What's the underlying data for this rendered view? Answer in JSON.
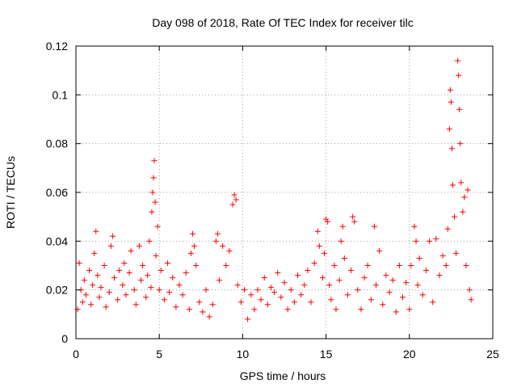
{
  "chart_data": {
    "type": "scatter",
    "title": "Day 098 of 2018, Rate Of TEC Index for receiver tilc",
    "xlabel": "GPS time / hours",
    "ylabel": "ROTI / TECUs",
    "xlim": [
      0,
      25
    ],
    "ylim": [
      0,
      0.12
    ],
    "x_ticks": [
      0,
      5,
      10,
      15,
      20,
      25
    ],
    "x_tick_labels": [
      "0",
      "5",
      "10",
      "15",
      "20",
      "25"
    ],
    "y_ticks": [
      0,
      0.02,
      0.04,
      0.06,
      0.08,
      0.1,
      0.12
    ],
    "y_tick_labels": [
      "0",
      "0.02",
      "0.04",
      "0.06",
      "0.08",
      "0.1",
      "0.12"
    ],
    "grid": true,
    "marker": "+",
    "color": "#ff0000",
    "series": [
      {
        "name": "ROTI",
        "points": [
          [
            0.1,
            0.012
          ],
          [
            0.2,
            0.031
          ],
          [
            0.3,
            0.02
          ],
          [
            0.4,
            0.015
          ],
          [
            0.5,
            0.024
          ],
          [
            0.6,
            0.018
          ],
          [
            0.8,
            0.028
          ],
          [
            0.9,
            0.014
          ],
          [
            1.0,
            0.022
          ],
          [
            1.1,
            0.035
          ],
          [
            1.2,
            0.044
          ],
          [
            1.3,
            0.026
          ],
          [
            1.4,
            0.017
          ],
          [
            1.5,
            0.021
          ],
          [
            1.7,
            0.03
          ],
          [
            1.8,
            0.013
          ],
          [
            2.0,
            0.019
          ],
          [
            2.1,
            0.038
          ],
          [
            2.2,
            0.042
          ],
          [
            2.3,
            0.025
          ],
          [
            2.5,
            0.016
          ],
          [
            2.6,
            0.028
          ],
          [
            2.8,
            0.022
          ],
          [
            2.9,
            0.031
          ],
          [
            3.0,
            0.018
          ],
          [
            3.2,
            0.027
          ],
          [
            3.3,
            0.036
          ],
          [
            3.5,
            0.02
          ],
          [
            3.6,
            0.014
          ],
          [
            3.8,
            0.038
          ],
          [
            3.9,
            0.024
          ],
          [
            4.0,
            0.03
          ],
          [
            4.2,
            0.017
          ],
          [
            4.3,
            0.026
          ],
          [
            4.4,
            0.04
          ],
          [
            4.5,
            0.021
          ],
          [
            4.55,
            0.052
          ],
          [
            4.6,
            0.06
          ],
          [
            4.65,
            0.066
          ],
          [
            4.7,
            0.073
          ],
          [
            4.75,
            0.056
          ],
          [
            4.8,
            0.034
          ],
          [
            4.9,
            0.046
          ],
          [
            5.0,
            0.02
          ],
          [
            5.1,
            0.028
          ],
          [
            5.3,
            0.016
          ],
          [
            5.5,
            0.031
          ],
          [
            5.6,
            0.019
          ],
          [
            5.8,
            0.025
          ],
          [
            6.0,
            0.013
          ],
          [
            6.2,
            0.022
          ],
          [
            6.4,
            0.018
          ],
          [
            6.6,
            0.027
          ],
          [
            6.8,
            0.012
          ],
          [
            6.9,
            0.035
          ],
          [
            7.0,
            0.043
          ],
          [
            7.1,
            0.038
          ],
          [
            7.2,
            0.03
          ],
          [
            7.4,
            0.015
          ],
          [
            7.6,
            0.011
          ],
          [
            7.8,
            0.02
          ],
          [
            8.0,
            0.009
          ],
          [
            8.2,
            0.014
          ],
          [
            8.4,
            0.04
          ],
          [
            8.5,
            0.043
          ],
          [
            8.6,
            0.024
          ],
          [
            8.8,
            0.038
          ],
          [
            9.0,
            0.03
          ],
          [
            9.2,
            0.036
          ],
          [
            9.4,
            0.055
          ],
          [
            9.5,
            0.059
          ],
          [
            9.6,
            0.057
          ],
          [
            9.7,
            0.022
          ],
          [
            9.9,
            0.015
          ],
          [
            10.1,
            0.02
          ],
          [
            10.3,
            0.008
          ],
          [
            10.5,
            0.018
          ],
          [
            10.7,
            0.012
          ],
          [
            10.9,
            0.02
          ],
          [
            11.1,
            0.016
          ],
          [
            11.3,
            0.025
          ],
          [
            11.5,
            0.014
          ],
          [
            11.7,
            0.021
          ],
          [
            11.9,
            0.019
          ],
          [
            12.1,
            0.027
          ],
          [
            12.3,
            0.017
          ],
          [
            12.5,
            0.023
          ],
          [
            12.7,
            0.012
          ],
          [
            12.9,
            0.02
          ],
          [
            13.1,
            0.015
          ],
          [
            13.3,
            0.026
          ],
          [
            13.5,
            0.018
          ],
          [
            13.7,
            0.022
          ],
          [
            13.9,
            0.028
          ],
          [
            14.1,
            0.015
          ],
          [
            14.3,
            0.031
          ],
          [
            14.5,
            0.044
          ],
          [
            14.6,
            0.038
          ],
          [
            14.8,
            0.025
          ],
          [
            14.9,
            0.035
          ],
          [
            15.0,
            0.049
          ],
          [
            15.1,
            0.048
          ],
          [
            15.2,
            0.022
          ],
          [
            15.3,
            0.016
          ],
          [
            15.5,
            0.03
          ],
          [
            15.6,
            0.012
          ],
          [
            15.8,
            0.024
          ],
          [
            15.9,
            0.04
          ],
          [
            16.0,
            0.046
          ],
          [
            16.1,
            0.033
          ],
          [
            16.3,
            0.018
          ],
          [
            16.5,
            0.028
          ],
          [
            16.6,
            0.05
          ],
          [
            16.7,
            0.048
          ],
          [
            16.9,
            0.02
          ],
          [
            17.1,
            0.012
          ],
          [
            17.3,
            0.025
          ],
          [
            17.5,
            0.03
          ],
          [
            17.7,
            0.016
          ],
          [
            17.9,
            0.046
          ],
          [
            18.0,
            0.022
          ],
          [
            18.2,
            0.036
          ],
          [
            18.4,
            0.014
          ],
          [
            18.6,
            0.026
          ],
          [
            18.8,
            0.019
          ],
          [
            19.0,
            0.024
          ],
          [
            19.2,
            0.011
          ],
          [
            19.4,
            0.03
          ],
          [
            19.6,
            0.017
          ],
          [
            19.8,
            0.023
          ],
          [
            20.0,
            0.012
          ],
          [
            20.1,
            0.03
          ],
          [
            20.3,
            0.046
          ],
          [
            20.4,
            0.04
          ],
          [
            20.5,
            0.022
          ],
          [
            20.6,
            0.033
          ],
          [
            20.8,
            0.018
          ],
          [
            21.0,
            0.028
          ],
          [
            21.2,
            0.04
          ],
          [
            21.4,
            0.015
          ],
          [
            21.6,
            0.041
          ],
          [
            21.8,
            0.026
          ],
          [
            22.0,
            0.034
          ],
          [
            22.2,
            0.03
          ],
          [
            22.3,
            0.045
          ],
          [
            22.4,
            0.086
          ],
          [
            22.45,
            0.102
          ],
          [
            22.5,
            0.097
          ],
          [
            22.55,
            0.078
          ],
          [
            22.6,
            0.063
          ],
          [
            22.7,
            0.05
          ],
          [
            22.8,
            0.035
          ],
          [
            22.9,
            0.114
          ],
          [
            22.95,
            0.108
          ],
          [
            23.0,
            0.094
          ],
          [
            23.05,
            0.08
          ],
          [
            23.1,
            0.064
          ],
          [
            23.2,
            0.052
          ],
          [
            23.3,
            0.058
          ],
          [
            23.4,
            0.03
          ],
          [
            23.5,
            0.061
          ],
          [
            23.6,
            0.02
          ],
          [
            23.7,
            0.016
          ]
        ]
      }
    ]
  }
}
